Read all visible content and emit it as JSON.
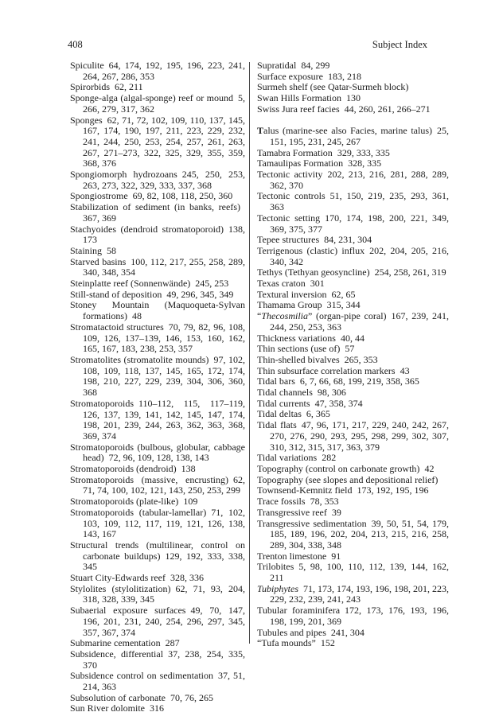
{
  "page": {
    "number": "408",
    "header_title": "Subject Index"
  },
  "colors": {
    "text": "#1c1c1c",
    "background": "#ffffff",
    "divider": "#4a4a4a"
  },
  "index": {
    "left_column": [
      {
        "term": "Spiculite",
        "pages": "64, 174, 192, 195, 196, 223, 241, 264, 267, 286, 353"
      },
      {
        "term": "Spirorbids",
        "pages": "62, 211"
      },
      {
        "term": "Sponge-alga (algal-sponge) reef or mound",
        "pages": "5, 266, 279, 317, 362"
      },
      {
        "term": "Sponges",
        "pages": "62, 71, 72, 102, 109, 110, 137, 145, 167, 174, 190, 197, 211, 223, 229, 232, 241, 244, 250, 253, 254, 257, 261, 263, 267, 271–273, 322, 325, 329, 355, 359, 368, 376"
      },
      {
        "term": "Spongiomorph hydrozoans",
        "pages": "245, 250, 253, 263, 273, 322, 329, 333, 337, 368"
      },
      {
        "term": "Spongiostrome",
        "pages": "69, 82, 108, 118, 250, 360"
      },
      {
        "term": "Stabilization of sediment (in banks, reefs)",
        "pages": "367, 369"
      },
      {
        "term": "Stachyoides (dendroid stromatoporoid)",
        "pages": "138, 173"
      },
      {
        "term": "Staining",
        "pages": "58"
      },
      {
        "term": "Starved basins",
        "pages": "100, 112, 217, 255, 258, 289, 340, 348, 354"
      },
      {
        "term": "Steinplatte reef (Sonnenwände)",
        "pages": "245, 253"
      },
      {
        "term": "Still-stand of deposition",
        "pages": "49, 296, 345, 349"
      },
      {
        "term": "Stoney Mountain (Maquoqueta-Sylvan formations)",
        "pages": "48"
      },
      {
        "term": "Stromatactoid structures",
        "pages": "70, 79, 82, 96, 108, 109, 126, 137–139, 146, 153, 160, 162, 165, 167, 183, 238, 253, 357"
      },
      {
        "term": "Stromatolites (stromatolite mounds)",
        "pages": "97, 102, 108, 109, 118, 137, 145, 165, 172, 174, 198, 210, 227, 229, 239, 304, 306, 360, 368"
      },
      {
        "term": "Stromatoporoids",
        "pages": "110–112, 115, 117–119, 126, 137, 139, 141, 142, 145, 147, 174, 198, 201, 239, 244, 263, 362, 363, 368, 369, 374"
      },
      {
        "term": "Stromatoporoids (bulbous, globular, cabbage head)",
        "pages": "72, 96, 109, 128, 138, 143"
      },
      {
        "term": "Stromatoporoids (dendroid)",
        "pages": "138"
      },
      {
        "term": "Stromatoporoids (massive, encrusting)",
        "pages": "62, 71, 74, 100, 102, 121, 143, 250, 253, 299"
      },
      {
        "term": "Stromatoporoids (plate-like)",
        "pages": "109"
      },
      {
        "term": "Stromatoporoids (tabular-lamellar)",
        "pages": "71, 102, 103, 109, 112, 117, 119, 121, 126, 138, 143, 167"
      },
      {
        "term": "Structural trends (multilinear, control on carbonate buildups)",
        "pages": "129, 192, 333, 338, 345"
      },
      {
        "term": "Stuart City-Edwards reef",
        "pages": "328, 336"
      },
      {
        "term": "Stylolites (stylolitization)",
        "pages": "62, 71, 93, 204, 318, 328, 339, 345"
      },
      {
        "term": "Subaerial exposure surfaces",
        "pages": "49, 70, 147, 196, 201, 231, 240, 254, 296, 297, 345, 357, 367, 374"
      },
      {
        "term": "Submarine cementation",
        "pages": "287"
      },
      {
        "term": "Subsidence, differential",
        "pages": "37, 238, 254, 335, 370"
      },
      {
        "term": "Subsidence control on sedimentation",
        "pages": "37, 51, 214, 363"
      },
      {
        "term": "Subsolution of carbonate",
        "pages": "70, 76, 265"
      },
      {
        "term": "Sun River dolomite",
        "pages": "316"
      }
    ],
    "right_column": [
      {
        "term": "Supratidal",
        "pages": "84, 299"
      },
      {
        "term": "Surface exposure",
        "pages": "183, 218"
      },
      {
        "term": "Surmeh shelf (see Qatar-Surmeh block)",
        "pages": ""
      },
      {
        "term": "Swan Hills Formation",
        "pages": "130"
      },
      {
        "term": "Swiss Jura reef facies",
        "pages": "44, 260, 261, 266–271"
      },
      {
        "term": "Talus (marine-see also Facies, marine talus)",
        "pages": "25, 151, 195, 231, 245, 267",
        "bold_first": true,
        "section_break": true
      },
      {
        "term": "Tamabra Formation",
        "pages": "329, 333, 335"
      },
      {
        "term": "Tamaulipas Formation",
        "pages": "328, 335"
      },
      {
        "term": "Tectonic activity",
        "pages": "202, 213, 216, 281, 288, 289, 362, 370"
      },
      {
        "term": "Tectonic controls",
        "pages": "51, 150, 219, 235, 293, 361, 363"
      },
      {
        "term": "Tectonic setting",
        "pages": "170, 174, 198, 200, 221, 349, 369, 375, 377"
      },
      {
        "term": "Tepee structures",
        "pages": "84, 231, 304"
      },
      {
        "term": "Terrigenous (clastic) influx",
        "pages": "202, 204, 205, 216, 340, 342"
      },
      {
        "term": "Tethys (Tethyan geosyncline)",
        "pages": "254, 258, 261, 319"
      },
      {
        "term": "Texas craton",
        "pages": "301"
      },
      {
        "term": "Textural inversion",
        "pages": "62, 65"
      },
      {
        "term": "Thamama Group",
        "pages": "315, 344"
      },
      {
        "pre": "“",
        "term": "Thecosmilia",
        "italic": true,
        "post": "” (organ-pipe coral)",
        "pages": "167, 239, 241, 244, 250, 253, 363"
      },
      {
        "term": "Thickness variations",
        "pages": "40, 44"
      },
      {
        "term": "Thin sections (use of)",
        "pages": "57"
      },
      {
        "term": "Thin-shelled bivalves",
        "pages": "265, 353"
      },
      {
        "term": "Thin subsurface correlation markers",
        "pages": "43"
      },
      {
        "term": "Tidal bars",
        "pages": "6, 7, 66, 68, 199, 219, 358, 365"
      },
      {
        "term": "Tidal channels",
        "pages": "98, 306"
      },
      {
        "term": "Tidal currents",
        "pages": "47, 358, 374"
      },
      {
        "term": "Tidal deltas",
        "pages": "6, 365"
      },
      {
        "term": "Tidal flats",
        "pages": "47, 96, 171, 217, 229, 240, 242, 267, 270, 276, 290, 293, 295, 298, 299, 302, 307, 310, 312, 315, 317, 363, 379"
      },
      {
        "term": "Tidal variations",
        "pages": "282"
      },
      {
        "term": "Topography (control on carbonate growth)",
        "pages": "42"
      },
      {
        "term": "Topography (see slopes and depositional relief)",
        "pages": ""
      },
      {
        "term": "Townsend-Kemnitz field",
        "pages": "173, 192, 195, 196"
      },
      {
        "term": "Trace fossils",
        "pages": "78, 353"
      },
      {
        "term": "Transgressive reef",
        "pages": "39"
      },
      {
        "term": "Transgressive sedimentation",
        "pages": "39, 50, 51, 54, 179, 185, 189, 196, 202, 204, 213, 215, 216, 258, 289, 304, 338, 348"
      },
      {
        "term": "Trenton limestone",
        "pages": "91"
      },
      {
        "term": "Trilobites",
        "pages": "5, 98, 100, 110, 112, 139, 144, 162, 211"
      },
      {
        "term": "Tubiphytes",
        "italic": true,
        "pages": "71, 173, 174, 193, 196, 198, 201, 223, 229, 232, 239, 241, 243"
      },
      {
        "term": "Tubular foraminifera",
        "pages": "172, 173, 176, 193, 196, 198, 199, 201, 369"
      },
      {
        "term": "Tubules and pipes",
        "pages": "241, 304"
      },
      {
        "term": "“Tufa mounds”",
        "pages": "152"
      }
    ]
  }
}
